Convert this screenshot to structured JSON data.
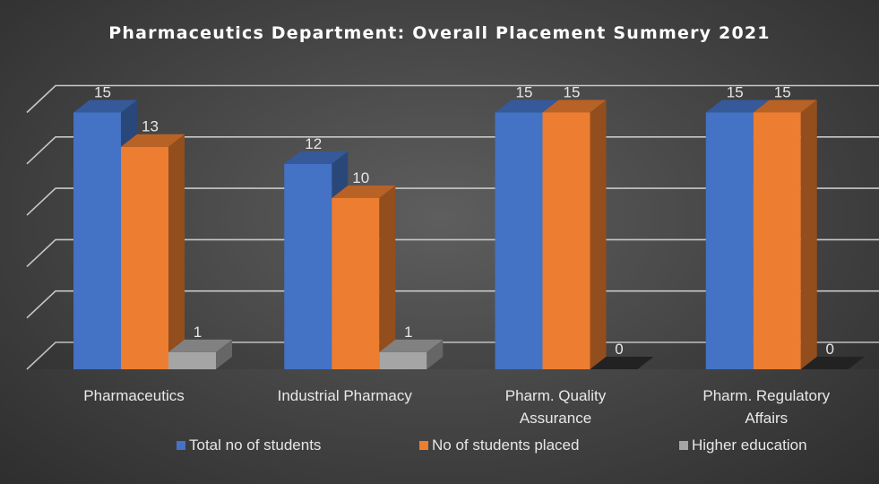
{
  "chart_data": {
    "type": "bar",
    "title": "Pharmaceutics Department: Overall Placement Summery 2021",
    "categories": [
      "Pharmaceutics",
      "Industrial Pharmacy",
      "Pharm. Quality\nAssurance",
      "Pharm. Regulatory\nAffairs"
    ],
    "series": [
      {
        "name": "Total no of students",
        "color": "#4472c4",
        "values": [
          15,
          12,
          15,
          15
        ]
      },
      {
        "name": "No of students placed",
        "color": "#ed7d31",
        "values": [
          13,
          10,
          15,
          15
        ]
      },
      {
        "name": "Higher education",
        "color": "#a5a5a5",
        "values": [
          1,
          1,
          0,
          0
        ]
      }
    ],
    "ylim": [
      0,
      15
    ],
    "grid": true,
    "style": "3d-clustered-column",
    "legend_position": "bottom"
  }
}
